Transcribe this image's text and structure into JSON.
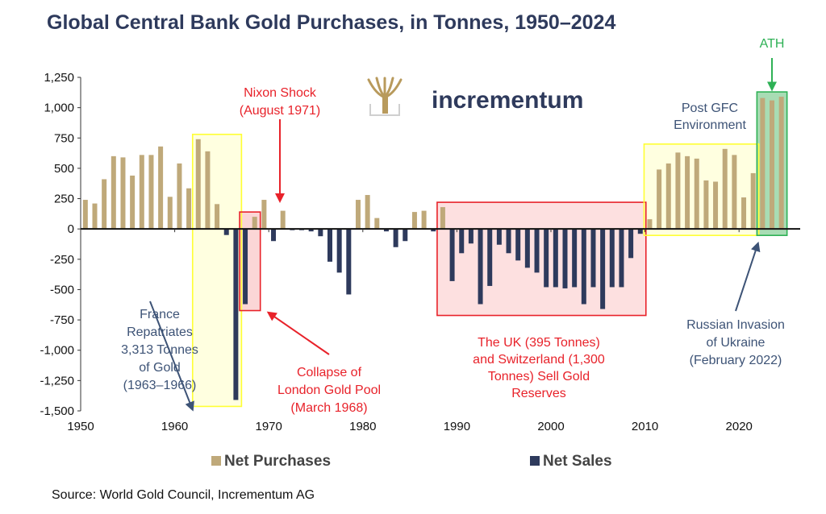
{
  "title": "Global Central Bank Gold Purchases, in Tonnes, 1950–2024",
  "source": "Source: World Gold Council, Incrementum AG",
  "logo": {
    "text": "incrementum",
    "icon": "tree-logo-icon",
    "color": "#2e3a5c",
    "icon_color": "#b89a5c"
  },
  "colors": {
    "purchases": "#bfa97a",
    "sales": "#2e3a5c",
    "red": "#e8222a",
    "navy_text": "#3d5376",
    "green": "#2eb155",
    "yellow_box": "#ffff33"
  },
  "chart_data": {
    "type": "bar",
    "x_start": 1950,
    "x_end": 2024,
    "xticks": [
      1950,
      1960,
      1970,
      1980,
      1990,
      2000,
      2010,
      2020
    ],
    "ylim": [
      -1500,
      1250
    ],
    "yticks": [
      1250,
      1000,
      750,
      500,
      250,
      0,
      -250,
      -500,
      -750,
      -1000,
      -1250,
      -1500
    ],
    "ytick_labels": [
      "1,250",
      "1,000",
      "750",
      "500",
      "250",
      "0",
      "-250",
      "-500",
      "-750",
      "-1,000",
      "-1,250",
      "-1,500"
    ],
    "values": [
      240,
      210,
      410,
      600,
      590,
      440,
      610,
      610,
      680,
      265,
      540,
      335,
      740,
      640,
      205,
      -50,
      -1410,
      -620,
      100,
      240,
      -100,
      150,
      -10,
      -10,
      -20,
      -60,
      -270,
      -360,
      -540,
      240,
      280,
      90,
      -20,
      -150,
      -100,
      140,
      150,
      -20,
      180,
      -430,
      -200,
      -120,
      -620,
      -470,
      -130,
      -200,
      -260,
      -320,
      -360,
      -480,
      -480,
      -490,
      -480,
      -620,
      -480,
      -660,
      -480,
      -480,
      -240,
      -40,
      80,
      490,
      540,
      630,
      600,
      580,
      400,
      390,
      660,
      610,
      260,
      460,
      1080,
      1060,
      1090
    ],
    "legend": [
      "Net Purchases",
      "Net Sales"
    ],
    "legend_position": "bottom",
    "annotations": {
      "nixon": [
        "Nixon Shock",
        "(August 1971)"
      ],
      "france": [
        "France",
        "Repatriates",
        "3,313 Tonnes",
        "of Gold",
        "(1963–1966)"
      ],
      "collapse": [
        "Collapse of",
        "London Gold Pool",
        "(March 1968)"
      ],
      "uk": [
        "The UK (395 Tonnes)",
        "and Switzerland (1,300",
        "Tonnes) Sell Gold",
        "Reserves"
      ],
      "gfc": [
        "Post GFC",
        "Environment"
      ],
      "russia": [
        "Russian Invasion",
        "of Ukraine",
        "(February 2022)"
      ],
      "ath": [
        "ATH"
      ]
    },
    "boxes": {
      "france": [
        1962,
        1966
      ],
      "collapse": [
        1967,
        1968
      ],
      "uk": [
        1988,
        2009
      ],
      "gfc": [
        2010,
        2021
      ],
      "ath": [
        2022,
        2024
      ]
    }
  }
}
